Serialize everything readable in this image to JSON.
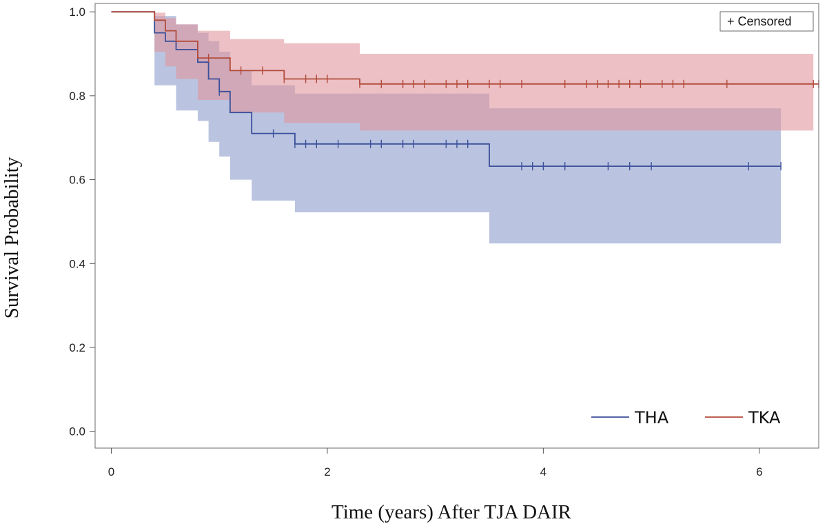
{
  "chart_data": {
    "type": "line",
    "subtype": "kaplan-meier survival curve with confidence bands",
    "title": "",
    "xlabel": "Time (years) After TJA DAIR",
    "ylabel": "Survival Probability",
    "xlim": [
      -0.15,
      6.55
    ],
    "ylim": [
      -0.04,
      1.02
    ],
    "x_ticks": [
      0,
      2,
      4,
      6
    ],
    "x_tick_labels": [
      "0",
      "2",
      "4",
      "6"
    ],
    "y_ticks": [
      0.0,
      0.2,
      0.4,
      0.6,
      0.8,
      1.0
    ],
    "y_tick_labels": [
      "0.0",
      "0.2",
      "0.4",
      "0.6",
      "0.8",
      "1.0"
    ],
    "grid": false,
    "censored_legend": "+ Censored",
    "legend_position": "bottom-right",
    "series": [
      {
        "name": "THA",
        "color": "#3b4f9a",
        "band_color": "#8c9ccb",
        "steps": [
          [
            0,
            1.0
          ],
          [
            0.4,
            0.95
          ],
          [
            0.5,
            0.93
          ],
          [
            0.6,
            0.91
          ],
          [
            0.8,
            0.88
          ],
          [
            0.9,
            0.84
          ],
          [
            1.0,
            0.81
          ],
          [
            1.1,
            0.76
          ],
          [
            1.3,
            0.71
          ],
          [
            1.7,
            0.685
          ],
          [
            3.5,
            0.632
          ],
          [
            6.2,
            0.632
          ]
        ],
        "ci_lower": [
          [
            0,
            1.0
          ],
          [
            0.4,
            0.825
          ],
          [
            0.6,
            0.765
          ],
          [
            0.8,
            0.74
          ],
          [
            0.9,
            0.69
          ],
          [
            1.0,
            0.655
          ],
          [
            1.1,
            0.6
          ],
          [
            1.3,
            0.55
          ],
          [
            1.7,
            0.522
          ],
          [
            3.5,
            0.448
          ],
          [
            6.2,
            0.448
          ]
        ],
        "ci_upper": [
          [
            0,
            1.0
          ],
          [
            0.4,
            0.99
          ],
          [
            0.6,
            0.97
          ],
          [
            0.8,
            0.95
          ],
          [
            0.9,
            0.93
          ],
          [
            1.0,
            0.905
          ],
          [
            1.1,
            0.86
          ],
          [
            1.3,
            0.825
          ],
          [
            1.7,
            0.805
          ],
          [
            3.5,
            0.77
          ],
          [
            6.2,
            0.77
          ]
        ],
        "censored": [
          1.0,
          1.5,
          1.7,
          1.8,
          1.9,
          2.1,
          2.4,
          2.5,
          2.7,
          2.8,
          3.1,
          3.2,
          3.3,
          3.8,
          3.9,
          4.0,
          4.2,
          4.6,
          4.8,
          5.0,
          5.9,
          6.2
        ]
      },
      {
        "name": "TKA",
        "color": "#b24a3a",
        "band_color": "#e0969d",
        "steps": [
          [
            0,
            1.0
          ],
          [
            0.4,
            0.98
          ],
          [
            0.5,
            0.955
          ],
          [
            0.6,
            0.93
          ],
          [
            0.8,
            0.89
          ],
          [
            1.1,
            0.86
          ],
          [
            1.6,
            0.84
          ],
          [
            2.3,
            0.828
          ],
          [
            6.55,
            0.828
          ]
        ],
        "ci_lower": [
          [
            0,
            1.0
          ],
          [
            0.4,
            0.905
          ],
          [
            0.5,
            0.87
          ],
          [
            0.6,
            0.84
          ],
          [
            0.8,
            0.79
          ],
          [
            1.1,
            0.76
          ],
          [
            1.6,
            0.735
          ],
          [
            2.3,
            0.717
          ],
          [
            6.5,
            0.717
          ]
        ],
        "ci_upper": [
          [
            0,
            1.0
          ],
          [
            0.4,
            0.998
          ],
          [
            0.5,
            0.985
          ],
          [
            0.6,
            0.97
          ],
          [
            0.8,
            0.955
          ],
          [
            1.1,
            0.935
          ],
          [
            1.6,
            0.925
          ],
          [
            2.3,
            0.9
          ],
          [
            6.5,
            0.9
          ]
        ],
        "censored": [
          0.9,
          1.2,
          1.4,
          1.6,
          1.8,
          1.9,
          2.0,
          2.3,
          2.5,
          2.7,
          2.8,
          2.9,
          3.1,
          3.2,
          3.3,
          3.5,
          3.6,
          3.8,
          4.2,
          4.4,
          4.5,
          4.6,
          4.7,
          4.8,
          4.9,
          5.1,
          5.2,
          5.3,
          5.7,
          6.5,
          6.55
        ]
      }
    ]
  }
}
